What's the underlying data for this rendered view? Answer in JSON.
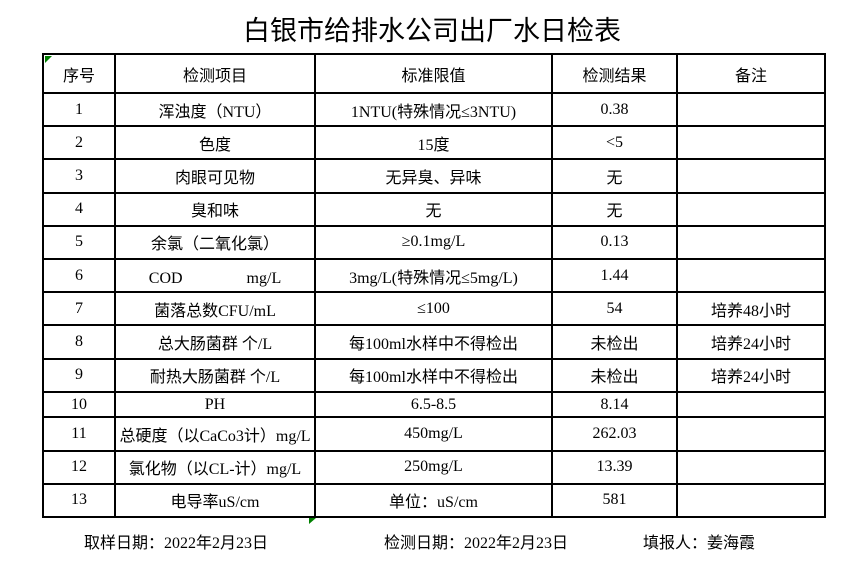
{
  "title": "白银市给排水公司出厂水日检表",
  "table": {
    "headers": {
      "no": "序号",
      "item": "检测项目",
      "limit": "标准限值",
      "result": "检测结果",
      "note": "备注"
    },
    "rows": [
      {
        "no": "1",
        "item": "浑浊度（NTU）",
        "limit": "1NTU(特殊情况≤3NTU)",
        "result": "0.38",
        "note": ""
      },
      {
        "no": "2",
        "item": "色度",
        "limit": "15度",
        "result": "<5",
        "note": ""
      },
      {
        "no": "3",
        "item": "肉眼可见物",
        "limit": "无异臭、异味",
        "result": "无",
        "note": ""
      },
      {
        "no": "4",
        "item": "臭和味",
        "limit": "无",
        "result": "无",
        "note": ""
      },
      {
        "no": "5",
        "item": "余氯（二氧化氯）",
        "limit": "≥0.1mg/L",
        "result": "0.13",
        "note": ""
      },
      {
        "no": "6",
        "item": "COD　　　　mg/L",
        "limit": "3mg/L(特殊情况≤5mg/L)",
        "result": "1.44",
        "note": ""
      },
      {
        "no": "7",
        "item": "菌落总数CFU/mL",
        "limit": "≤100",
        "result": "54",
        "note": "培养48小时"
      },
      {
        "no": "8",
        "item": "总大肠菌群 个/L",
        "limit": "每100ml水样中不得检出",
        "result": "未检出",
        "note": "培养24小时"
      },
      {
        "no": "9",
        "item": "耐热大肠菌群 个/L",
        "limit": "每100ml水样中不得检出",
        "result": "未检出",
        "note": "培养24小时"
      },
      {
        "no": "10",
        "item": "PH",
        "limit": "6.5-8.5",
        "result": "8.14",
        "note": ""
      },
      {
        "no": "11",
        "item": "总硬度（以CaCo3计）mg/L",
        "limit": "450mg/L",
        "result": "262.03",
        "note": ""
      },
      {
        "no": "12",
        "item": "氯化物（以CL-计）mg/L",
        "limit": "250mg/L",
        "result": "13.39",
        "note": ""
      },
      {
        "no": "13",
        "item": "电导率uS/cm",
        "limit": "单位：uS/cm",
        "result": "581",
        "note": ""
      }
    ]
  },
  "footer": {
    "sampling_date": "取样日期：2022年2月23日",
    "test_date": "检测日期：2022年2月23日",
    "reporter": "填报人：姜海霞"
  },
  "colors": {
    "background": "#ffffff",
    "text": "#000000",
    "table_border": "#000000",
    "cell_error_marker_green": "#008000"
  },
  "icons": {
    "top_left_marker": "cell-error-corner-triangle",
    "bottom_marker": "cell-error-corner-triangle"
  }
}
